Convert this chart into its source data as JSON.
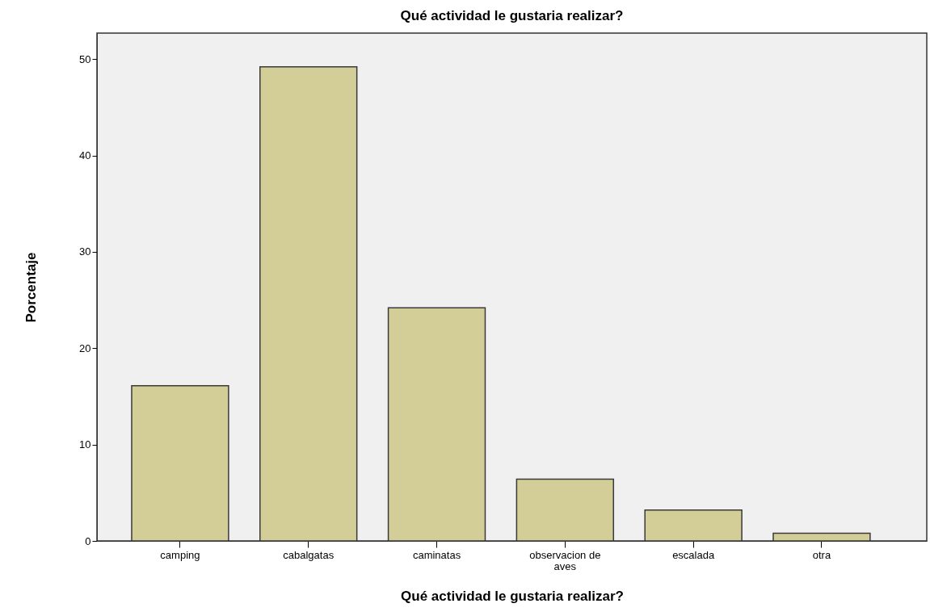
{
  "chart_data": {
    "type": "bar",
    "title": "Qué actividad le gustaria realizar?",
    "xlabel": "Qué actividad le gustaria realizar?",
    "ylabel": "Porcentaje",
    "categories": [
      "camping",
      "cabalgatas",
      "caminatas",
      "observacion de aves",
      "escalada",
      "otra"
    ],
    "values": [
      16.1,
      49.2,
      24.2,
      6.4,
      3.2,
      0.8
    ],
    "color": "#d3ce97",
    "ylim": [
      0,
      52.7
    ],
    "yticks": [
      0,
      10,
      20,
      30,
      40,
      50
    ]
  }
}
